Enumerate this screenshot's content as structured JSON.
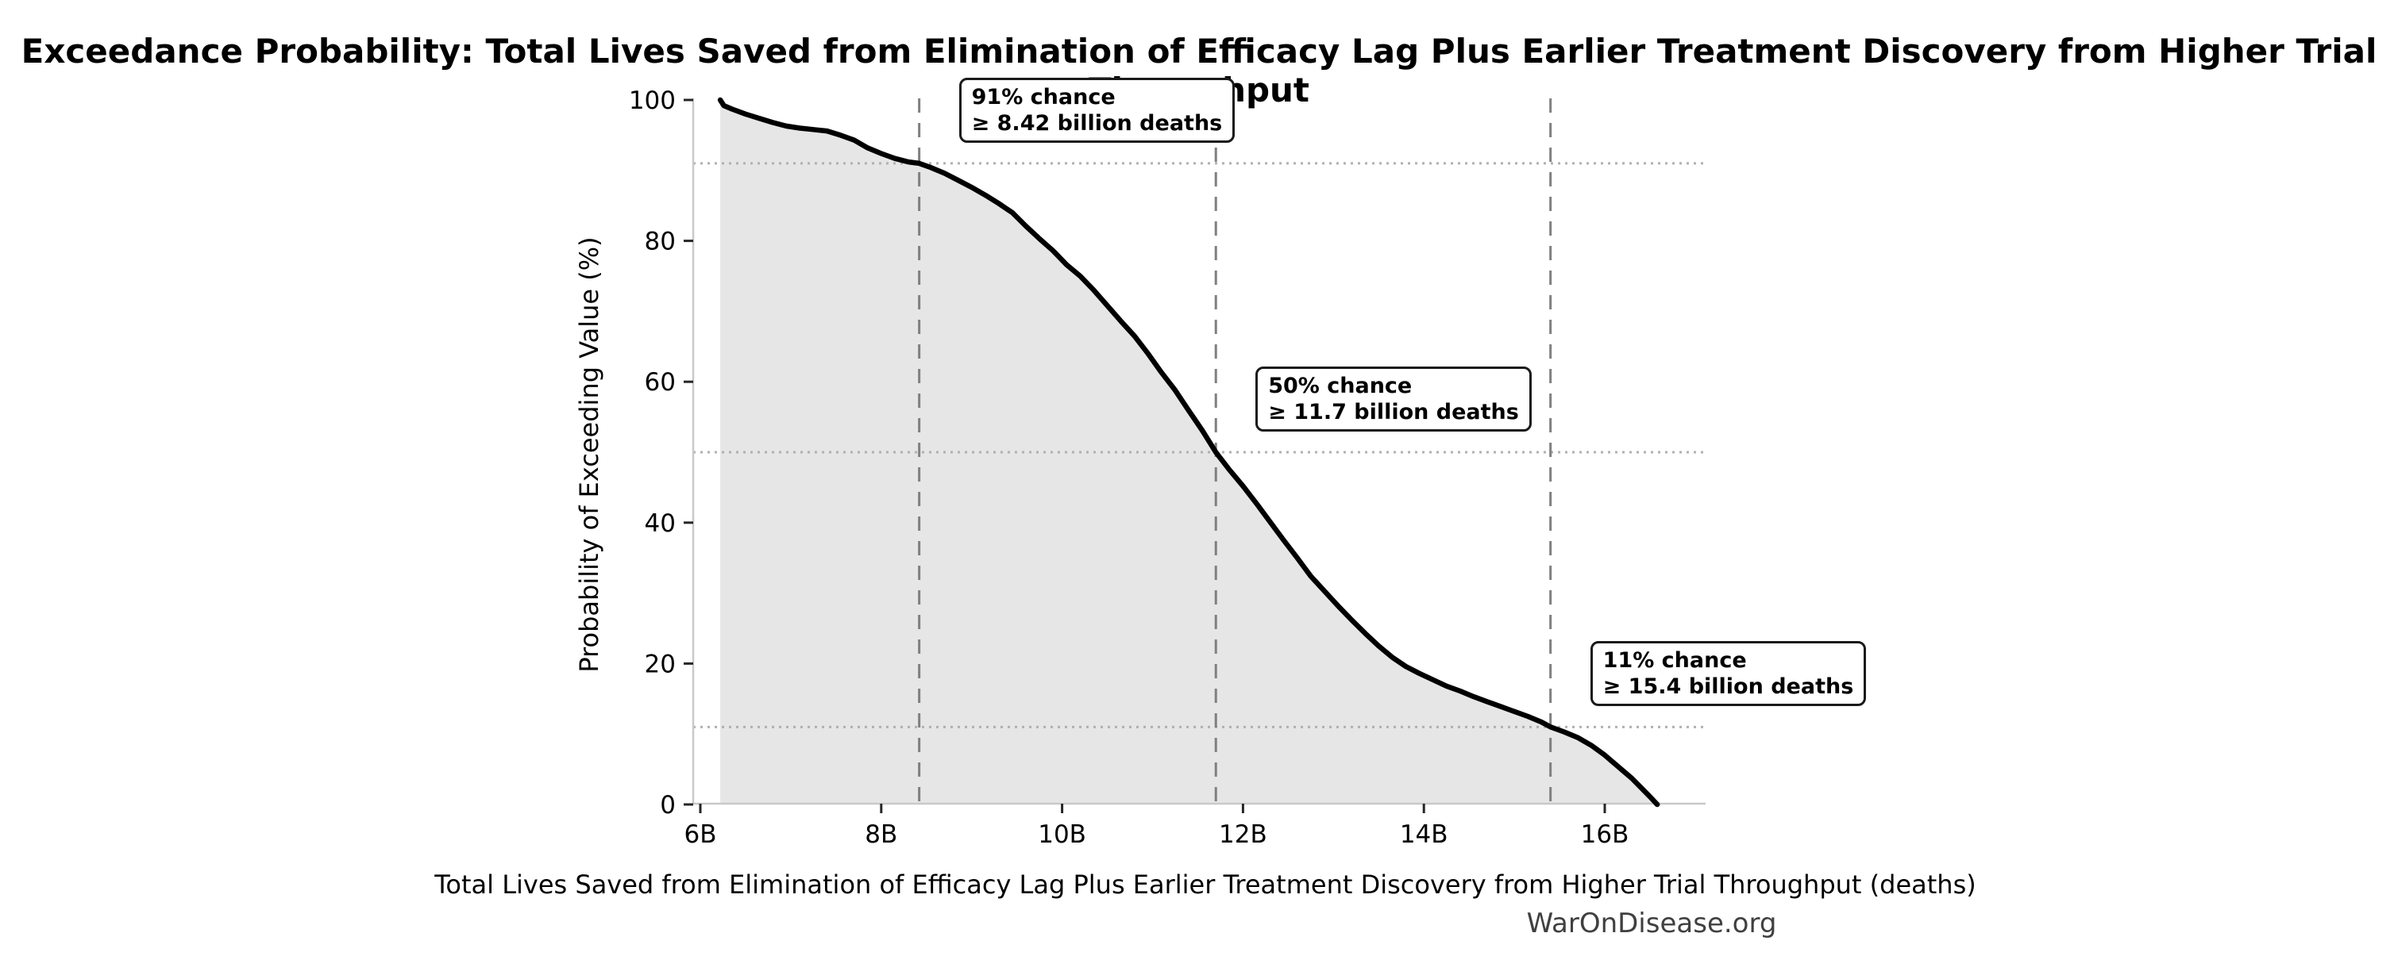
{
  "page": {
    "background": "#ffffff"
  },
  "chart_data": {
    "type": "area",
    "title": "Exceedance Probability: Total Lives Saved from Elimination of Efficacy Lag Plus Earlier Treatment Discovery from Higher Trial Throughput",
    "xlabel": "Total Lives Saved from Elimination of Efficacy Lag Plus Earlier Treatment Discovery from Higher Trial Throughput (deaths)",
    "ylabel": "Probability of Exceeding Value (%)",
    "footer": "WarOnDisease.org",
    "x_unit": "billions of deaths",
    "x_range": [
      5.92,
      17.11
    ],
    "y_range": [
      0,
      100
    ],
    "grid": {
      "horizontal_dotted_at_percent": [
        91,
        50,
        11
      ],
      "vertical_dashed_at_billions": [
        8.42,
        11.7,
        15.4
      ]
    },
    "legend_position": "none",
    "x_ticks": [
      {
        "value": 6,
        "label": "6B"
      },
      {
        "value": 8,
        "label": "8B"
      },
      {
        "value": 10,
        "label": "10B"
      },
      {
        "value": 12,
        "label": "12B"
      },
      {
        "value": 14,
        "label": "14B"
      },
      {
        "value": 16,
        "label": "16B"
      }
    ],
    "y_ticks": [
      {
        "value": 0,
        "label": "0"
      },
      {
        "value": 20,
        "label": "20"
      },
      {
        "value": 40,
        "label": "40"
      },
      {
        "value": 60,
        "label": "60"
      },
      {
        "value": 80,
        "label": "80"
      },
      {
        "value": 100,
        "label": "100"
      }
    ],
    "annotations": [
      {
        "x": 8.42,
        "p": 91,
        "line1": "91% chance",
        "line2": "≥ 8.42 billion deaths"
      },
      {
        "x": 11.7,
        "p": 50,
        "line1": "50% chance",
        "line2": "≥ 11.7 billion deaths"
      },
      {
        "x": 15.4,
        "p": 11,
        "line1": "11% chance",
        "line2": "≥ 15.4 billion deaths"
      }
    ],
    "points": [
      [
        6.22,
        100.0
      ],
      [
        6.26,
        99.2
      ],
      [
        6.35,
        98.7
      ],
      [
        6.5,
        98.0
      ],
      [
        6.65,
        97.4
      ],
      [
        6.8,
        96.8
      ],
      [
        6.95,
        96.3
      ],
      [
        7.1,
        96.0
      ],
      [
        7.25,
        95.8
      ],
      [
        7.4,
        95.6
      ],
      [
        7.55,
        95.0
      ],
      [
        7.7,
        94.3
      ],
      [
        7.85,
        93.2
      ],
      [
        8.0,
        92.4
      ],
      [
        8.15,
        91.7
      ],
      [
        8.3,
        91.2
      ],
      [
        8.42,
        91.0
      ],
      [
        8.55,
        90.4
      ],
      [
        8.7,
        89.6
      ],
      [
        8.85,
        88.6
      ],
      [
        9.0,
        87.6
      ],
      [
        9.15,
        86.5
      ],
      [
        9.3,
        85.3
      ],
      [
        9.45,
        84.0
      ],
      [
        9.6,
        82.1
      ],
      [
        9.75,
        80.3
      ],
      [
        9.9,
        78.6
      ],
      [
        10.05,
        76.6
      ],
      [
        10.2,
        75.0
      ],
      [
        10.35,
        73.0
      ],
      [
        10.5,
        70.8
      ],
      [
        10.65,
        68.6
      ],
      [
        10.8,
        66.5
      ],
      [
        10.95,
        64.0
      ],
      [
        11.1,
        61.3
      ],
      [
        11.25,
        58.8
      ],
      [
        11.4,
        55.9
      ],
      [
        11.55,
        53.1
      ],
      [
        11.7,
        50.0
      ],
      [
        11.85,
        47.5
      ],
      [
        12.0,
        45.2
      ],
      [
        12.15,
        42.7
      ],
      [
        12.3,
        40.1
      ],
      [
        12.45,
        37.5
      ],
      [
        12.6,
        35.0
      ],
      [
        12.75,
        32.4
      ],
      [
        12.9,
        30.3
      ],
      [
        13.05,
        28.2
      ],
      [
        13.2,
        26.2
      ],
      [
        13.35,
        24.3
      ],
      [
        13.5,
        22.5
      ],
      [
        13.65,
        20.9
      ],
      [
        13.8,
        19.6
      ],
      [
        13.95,
        18.6
      ],
      [
        14.1,
        17.7
      ],
      [
        14.25,
        16.8
      ],
      [
        14.4,
        16.1
      ],
      [
        14.55,
        15.3
      ],
      [
        14.7,
        14.6
      ],
      [
        14.85,
        13.9
      ],
      [
        15.0,
        13.2
      ],
      [
        15.15,
        12.5
      ],
      [
        15.3,
        11.7
      ],
      [
        15.4,
        11.0
      ],
      [
        15.55,
        10.3
      ],
      [
        15.7,
        9.5
      ],
      [
        15.85,
        8.4
      ],
      [
        16.0,
        7.0
      ],
      [
        16.1,
        5.9
      ],
      [
        16.2,
        4.8
      ],
      [
        16.3,
        3.7
      ],
      [
        16.4,
        2.4
      ],
      [
        16.5,
        1.1
      ],
      [
        16.58,
        0.0
      ]
    ],
    "colors": {
      "curve": "#000000",
      "fill": "#e6e6e6",
      "dashed_line": "#808080",
      "dotted_line": "#b0b0b0",
      "spine": "#c9c9c9",
      "tick": "#262626",
      "text": "#000000",
      "footer_text": "#404040",
      "annotation_bg": "#ffffff",
      "annotation_border": "#1a1a1a"
    }
  }
}
